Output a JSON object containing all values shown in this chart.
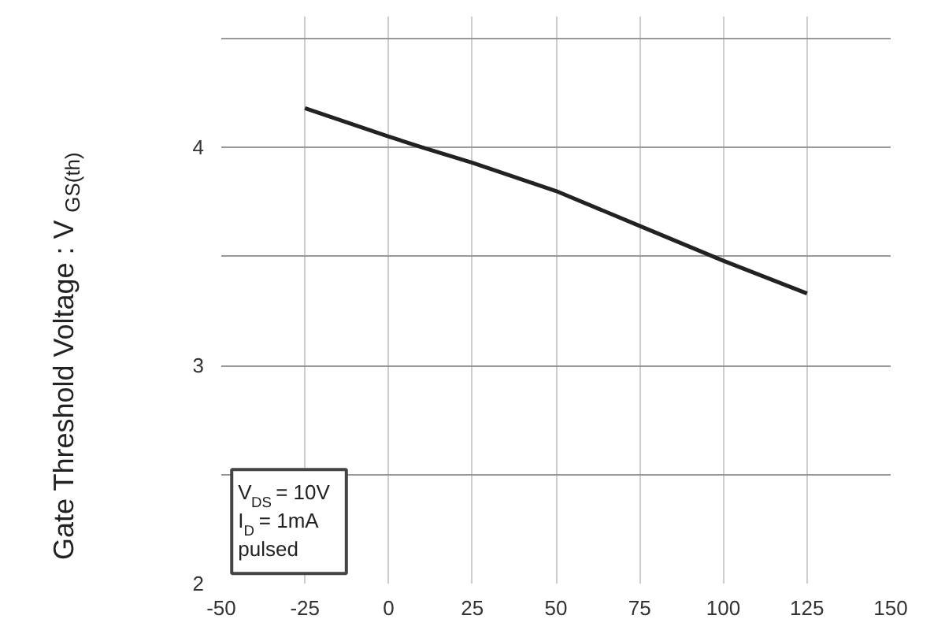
{
  "chart_data": {
    "type": "line",
    "ylabel": "Gate Threshold Voltage : V$_{GS(th)}$",
    "x": [
      -25,
      0,
      10,
      25,
      50,
      75,
      100,
      125
    ],
    "series": [
      {
        "color": "#222222",
        "values": [
          4.18,
          4.05,
          4.0,
          3.93,
          3.8,
          3.64,
          3.48,
          3.33
        ]
      }
    ],
    "xlim": [
      -50,
      150
    ],
    "xticks": [
      -50,
      -25,
      0,
      25,
      50,
      75,
      100,
      125,
      150
    ],
    "ylim": [
      2,
      4.6
    ],
    "yticks": [
      2,
      {
        "value": 2.5,
        "label": null
      },
      3,
      {
        "value": 3.5,
        "label": null
      },
      4,
      {
        "value": 4.5,
        "label": null
      }
    ],
    "grid": true,
    "line_style": "solid",
    "marker": "none",
    "annotations": [
      "V$_{DS}$ = 10V\nI$_{D}$ = 1mA\npulsed"
    ]
  }
}
